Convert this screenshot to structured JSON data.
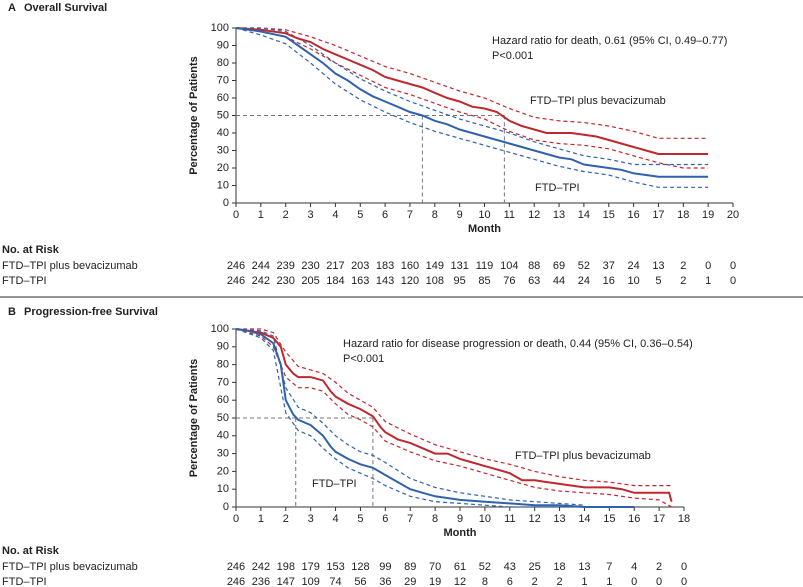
{
  "chart_data": [
    {
      "type": "line",
      "panel": "A",
      "title": "Overall Survival",
      "x_label": "Month",
      "y_label": "Percentage of Patients",
      "xlim": [
        0,
        20
      ],
      "xticks": [
        0,
        1,
        2,
        3,
        4,
        5,
        6,
        7,
        8,
        9,
        10,
        11,
        12,
        13,
        14,
        15,
        16,
        17,
        18,
        19,
        20
      ],
      "ylim": [
        0,
        100
      ],
      "yticks": [
        0,
        10,
        20,
        30,
        40,
        50,
        60,
        70,
        80,
        90,
        100
      ],
      "annotations": [
        "Hazard ratio for death, 0.61 (95% CI, 0.49–0.77)",
        "P<0.001"
      ],
      "reference_lines": {
        "y": 50,
        "x": [
          7.5,
          10.8
        ]
      },
      "series": [
        {
          "name": "FTD–TPI plus bevacizumab",
          "color": "#c0282d",
          "x": [
            0,
            1,
            2,
            2.5,
            3,
            3.5,
            4,
            4.5,
            5,
            5.5,
            6,
            6.5,
            7,
            7.5,
            8,
            8.5,
            9,
            9.5,
            10,
            10.5,
            11,
            11.5,
            12,
            12.5,
            13,
            13.5,
            14,
            14.5,
            15,
            15.5,
            16,
            16.5,
            17,
            18,
            19
          ],
          "values": [
            100,
            99,
            97,
            94,
            92,
            88,
            85,
            82,
            79,
            76,
            72,
            70,
            68,
            66,
            63,
            60,
            58,
            55,
            54,
            52,
            47,
            44,
            42,
            40,
            40,
            40,
            39,
            38,
            36,
            34,
            32,
            30,
            28,
            28,
            28
          ]
        },
        {
          "name": "FTD–TPI",
          "color": "#2f62ad",
          "x": [
            0,
            1,
            2,
            2.5,
            3,
            3.5,
            4,
            4.5,
            5,
            5.5,
            6,
            6.5,
            7,
            7.5,
            8,
            8.5,
            9,
            9.5,
            10,
            10.5,
            11,
            11.5,
            12,
            12.5,
            13,
            13.5,
            14,
            14.5,
            15,
            15.5,
            16,
            16.5,
            17,
            18,
            19
          ],
          "values": [
            100,
            98,
            95,
            90,
            85,
            80,
            74,
            70,
            65,
            61,
            58,
            55,
            52,
            50,
            47,
            45,
            42,
            40,
            38,
            36,
            34,
            32,
            30,
            28,
            26,
            25,
            22,
            21,
            20,
            19,
            17,
            16,
            15,
            15,
            15
          ]
        },
        {
          "color": "#c0282d",
          "dashed": true,
          "x": [
            0,
            1,
            2,
            3,
            4,
            5,
            6,
            7,
            8,
            9,
            10,
            11,
            12,
            13,
            14,
            15,
            16,
            17,
            18,
            19
          ],
          "values": [
            100,
            100,
            99,
            95,
            90,
            84,
            78,
            74,
            69,
            64,
            60,
            54,
            49,
            47,
            46,
            44,
            41,
            37,
            37,
            37
          ]
        },
        {
          "color": "#c0282d",
          "dashed": true,
          "x": [
            0,
            1,
            2,
            3,
            4,
            5,
            6,
            7,
            8,
            9,
            10,
            11,
            12,
            13,
            14,
            15,
            16,
            17,
            18,
            19
          ],
          "values": [
            100,
            98,
            95,
            88,
            80,
            73,
            66,
            62,
            57,
            52,
            48,
            41,
            36,
            34,
            33,
            31,
            27,
            23,
            20,
            20
          ]
        },
        {
          "color": "#2f62ad",
          "dashed": true,
          "x": [
            0,
            1,
            2,
            3,
            4,
            5,
            6,
            7,
            8,
            9,
            10,
            11,
            12,
            13,
            14,
            15,
            16,
            17,
            18,
            19
          ],
          "values": [
            100,
            100,
            98,
            90,
            80,
            71,
            64,
            58,
            53,
            48,
            44,
            40,
            35,
            31,
            27,
            25,
            22,
            22,
            22,
            22
          ]
        },
        {
          "color": "#2f62ad",
          "dashed": true,
          "x": [
            0,
            1,
            2,
            3,
            4,
            5,
            6,
            7,
            8,
            9,
            10,
            11,
            12,
            13,
            14,
            15,
            16,
            17,
            18,
            19
          ],
          "values": [
            100,
            96,
            91,
            80,
            68,
            59,
            52,
            46,
            41,
            37,
            33,
            29,
            25,
            21,
            18,
            16,
            12,
            9,
            9,
            9
          ]
        }
      ],
      "risk_table": {
        "title": "No. at Risk",
        "rows": [
          {
            "name": "FTD–TPI plus bevacizumab",
            "values": [
              246,
              244,
              239,
              230,
              217,
              203,
              183,
              160,
              149,
              131,
              119,
              104,
              88,
              69,
              52,
              37,
              24,
              13,
              2,
              0,
              0
            ]
          },
          {
            "name": "FTD–TPI",
            "values": [
              246,
              242,
              230,
              205,
              184,
              163,
              143,
              120,
              108,
              95,
              85,
              76,
              63,
              44,
              24,
              16,
              10,
              5,
              2,
              1,
              0
            ]
          }
        ]
      }
    },
    {
      "type": "line",
      "panel": "B",
      "title": "Progression-free Survival",
      "x_label": "Month",
      "y_label": "Percentage of Patients",
      "xlim": [
        0,
        18
      ],
      "xticks": [
        0,
        1,
        2,
        3,
        4,
        5,
        6,
        7,
        8,
        9,
        10,
        11,
        12,
        13,
        14,
        15,
        16,
        17,
        18
      ],
      "ylim": [
        0,
        100
      ],
      "yticks": [
        0,
        10,
        20,
        30,
        40,
        50,
        60,
        70,
        80,
        90,
        100
      ],
      "annotations": [
        "Hazard ratio for disease progression or death, 0.44 (95% CI, 0.36–0.54)",
        "P<0.001"
      ],
      "reference_lines": {
        "y": 50,
        "x": [
          2.4,
          5.5
        ]
      },
      "series": [
        {
          "name": "FTD–TPI plus bevacizumab",
          "color": "#c0282d",
          "x": [
            0,
            0.5,
            1,
            1.5,
            1.8,
            2,
            2.3,
            2.5,
            3,
            3.5,
            3.8,
            4,
            4.5,
            5,
            5.5,
            5.8,
            6,
            6.5,
            7,
            7.5,
            8,
            8.5,
            9,
            9.5,
            10,
            10.5,
            11,
            11.5,
            12,
            12.5,
            13,
            14,
            15,
            15.5,
            16,
            17,
            17.4,
            17.5
          ],
          "values": [
            100,
            99,
            98,
            95,
            90,
            80,
            75,
            73,
            73,
            71,
            65,
            62,
            58,
            55,
            51,
            45,
            42,
            38,
            36,
            33,
            30,
            30,
            27,
            25,
            23,
            21,
            19,
            15,
            15,
            14,
            13,
            11,
            11,
            10,
            8,
            8,
            8,
            3
          ]
        },
        {
          "name": "FTD–TPI",
          "color": "#2f62ad",
          "x": [
            0,
            0.5,
            1,
            1.5,
            1.8,
            2,
            2.3,
            2.5,
            3,
            3.5,
            3.8,
            4,
            4.5,
            5,
            5.5,
            6,
            6.5,
            7,
            7.5,
            8,
            9,
            10,
            11,
            12,
            13,
            14,
            16
          ],
          "values": [
            100,
            99,
            97,
            92,
            80,
            60,
            52,
            49,
            46,
            40,
            34,
            31,
            27,
            24,
            22,
            18,
            14,
            10,
            8,
            6,
            4,
            3,
            2,
            1,
            1,
            0,
            0
          ]
        },
        {
          "color": "#c0282d",
          "dashed": true,
          "x": [
            0,
            1,
            1.5,
            2,
            2.5,
            3,
            3.5,
            4,
            4.5,
            5,
            5.5,
            6,
            7,
            8,
            9,
            10,
            11,
            12,
            13,
            14,
            15,
            16,
            17,
            17.5
          ],
          "values": [
            100,
            100,
            98,
            87,
            79,
            77,
            75,
            70,
            64,
            60,
            56,
            48,
            41,
            35,
            31,
            27,
            24,
            20,
            17,
            15,
            14,
            12,
            12,
            12
          ]
        },
        {
          "color": "#c0282d",
          "dashed": true,
          "x": [
            0,
            1,
            1.5,
            2,
            2.5,
            3,
            3.5,
            4,
            4.5,
            5,
            5.5,
            6,
            7,
            8,
            9,
            10,
            11,
            12,
            13,
            14,
            15,
            16,
            17,
            17.5
          ],
          "values": [
            100,
            96,
            90,
            73,
            67,
            67,
            65,
            58,
            52,
            49,
            45,
            37,
            31,
            26,
            23,
            19,
            15,
            11,
            9,
            8,
            7,
            5,
            4,
            0
          ]
        },
        {
          "color": "#2f62ad",
          "dashed": true,
          "x": [
            0,
            1,
            1.5,
            2,
            2.5,
            3,
            3.5,
            4,
            4.5,
            5,
            5.5,
            6,
            7,
            8,
            9,
            10,
            11,
            12,
            13,
            14
          ],
          "values": [
            100,
            99,
            96,
            67,
            56,
            53,
            47,
            40,
            35,
            31,
            29,
            25,
            16,
            11,
            8,
            6,
            4,
            3,
            2,
            1
          ]
        },
        {
          "color": "#2f62ad",
          "dashed": true,
          "x": [
            0,
            1,
            1.5,
            2,
            2.5,
            3,
            3.5,
            4,
            4.5,
            5,
            5.5,
            6,
            7,
            8,
            9,
            10,
            11,
            12,
            13,
            14
          ],
          "values": [
            100,
            95,
            88,
            53,
            43,
            40,
            33,
            27,
            22,
            19,
            16,
            12,
            6,
            3,
            2,
            1,
            0,
            0,
            0,
            0
          ]
        }
      ],
      "risk_table": {
        "title": "No. at Risk",
        "rows": [
          {
            "name": "FTD–TPI plus bevacizumab",
            "values": [
              246,
              242,
              198,
              179,
              153,
              128,
              99,
              89,
              70,
              61,
              52,
              43,
              25,
              18,
              13,
              7,
              4,
              2,
              0
            ]
          },
          {
            "name": "FTD–TPI",
            "values": [
              246,
              236,
              147,
              109,
              74,
              56,
              36,
              29,
              19,
              12,
              8,
              6,
              2,
              2,
              1,
              1,
              0,
              0,
              0
            ]
          }
        ]
      }
    }
  ]
}
